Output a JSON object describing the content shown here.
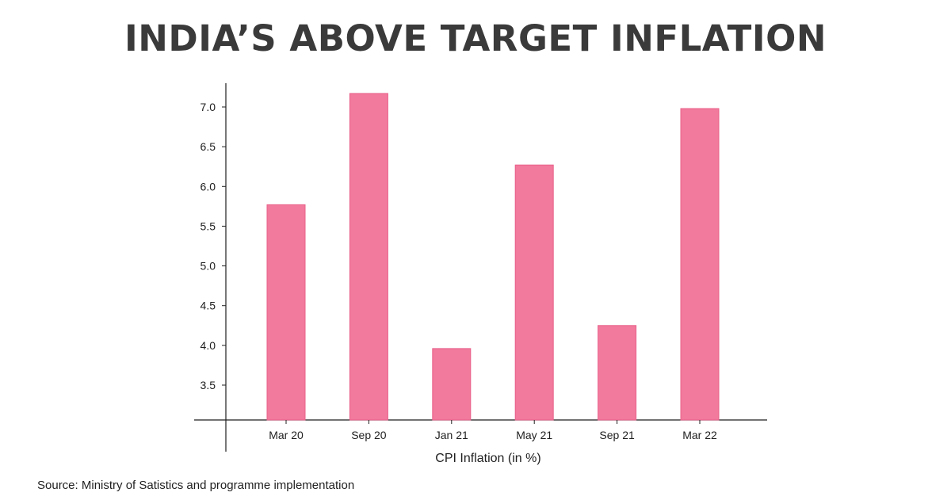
{
  "title": "INDIA’S ABOVE TARGET INFLATION",
  "source": "Source: Ministry of Satistics and programme implementation",
  "chart_data": {
    "type": "bar",
    "title": "INDIA’S ABOVE TARGET INFLATION",
    "xlabel": "CPI Inflation (in %)",
    "ylabel": "",
    "categories": [
      "Mar 20",
      "Sep 20",
      "Jan 21",
      "May 21",
      "Sep 21",
      "Mar 22"
    ],
    "values": [
      5.77,
      7.17,
      3.96,
      6.27,
      4.25,
      6.98
    ],
    "yticks": [
      "3.5",
      "4.0",
      "4.5",
      "5.0",
      "5.5",
      "6.0",
      "6.5",
      "7.0"
    ],
    "ylim": [
      3.05,
      7.3
    ],
    "grid": false,
    "bar_color": "#f27a9c",
    "bar_edge_color": "#e8608a"
  }
}
